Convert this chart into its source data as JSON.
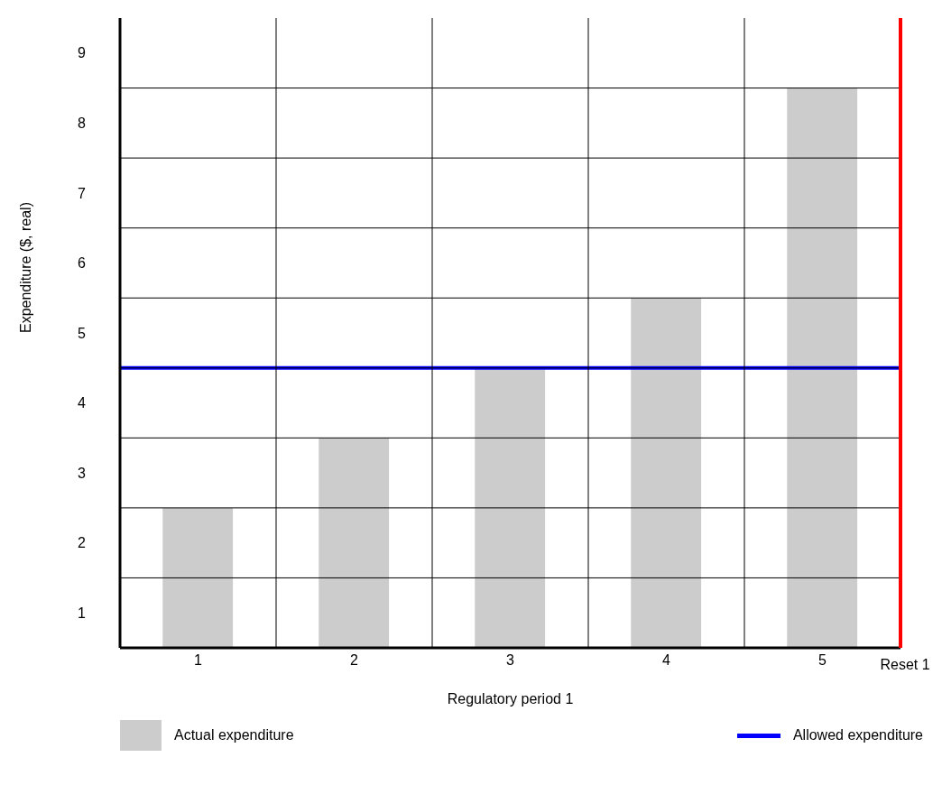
{
  "chart_data": {
    "type": "bar",
    "xlabel": "Regulatory period 1",
    "ylabel": "Expenditure ($, real)",
    "x": [
      1,
      2,
      3,
      4,
      5
    ],
    "xlim": [
      0.5,
      5.5
    ],
    "xticks": [
      1,
      2,
      3,
      4,
      5
    ],
    "ylim": [
      0,
      9
    ],
    "yticks": [
      {
        "value": 0.5,
        "label": "1"
      },
      {
        "value": 1.5,
        "label": "2"
      },
      {
        "value": 2.5,
        "label": "3"
      },
      {
        "value": 3.5,
        "label": "4"
      },
      {
        "value": 4.5,
        "label": "5"
      },
      {
        "value": 5.5,
        "label": "6"
      },
      {
        "value": 6.5,
        "label": "7"
      },
      {
        "value": 7.5,
        "label": "8"
      },
      {
        "value": 8.5,
        "label": "9"
      },
      {
        "value": 1,
        "label": null
      },
      {
        "value": 2,
        "label": null
      },
      {
        "value": 3,
        "label": null
      },
      {
        "value": 4,
        "label": null
      },
      {
        "value": 5,
        "label": null
      },
      {
        "value": 6,
        "label": null
      },
      {
        "value": 7,
        "label": null
      },
      {
        "value": 8,
        "label": null
      }
    ],
    "grid": true,
    "legend": "bottom",
    "series": [
      {
        "name": "Actual expenditure",
        "color": "#cccccc",
        "values": [
          2,
          3,
          4,
          5,
          8
        ]
      },
      {
        "name": "Allowed expenditure",
        "type": "line",
        "color": "#0000ff",
        "x": [
          0.5,
          5.5
        ],
        "values": [
          4,
          4
        ]
      }
    ],
    "ref_lines": [
      {
        "axis": "x",
        "value": 5.5,
        "label": "Reset 1",
        "color": "#ff0000"
      }
    ]
  }
}
